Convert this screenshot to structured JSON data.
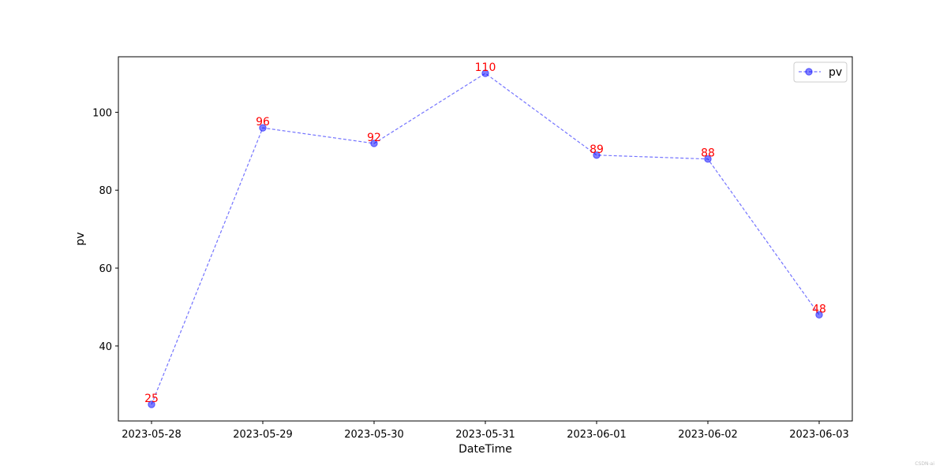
{
  "chart_data": {
    "type": "line",
    "title": "",
    "xlabel": "DateTime",
    "ylabel": "pv",
    "categories": [
      "2023-05-28",
      "2023-05-29",
      "2023-05-30",
      "2023-05-31",
      "2023-06-01",
      "2023-06-02",
      "2023-06-03"
    ],
    "series": [
      {
        "name": "pv",
        "values": [
          25,
          96,
          92,
          110,
          89,
          88,
          48
        ],
        "color": "#0000ff",
        "line_style": "dashed",
        "marker": "circle"
      }
    ],
    "data_labels": [
      "25",
      "96",
      "92",
      "110",
      "89",
      "88",
      "48"
    ],
    "data_label_color": "#ff0000",
    "yticks": [
      40,
      60,
      80,
      100
    ],
    "ylim": [
      20.75,
      114.25
    ],
    "grid": false,
    "legend": "upper right"
  },
  "watermark": "CSDN-ai"
}
